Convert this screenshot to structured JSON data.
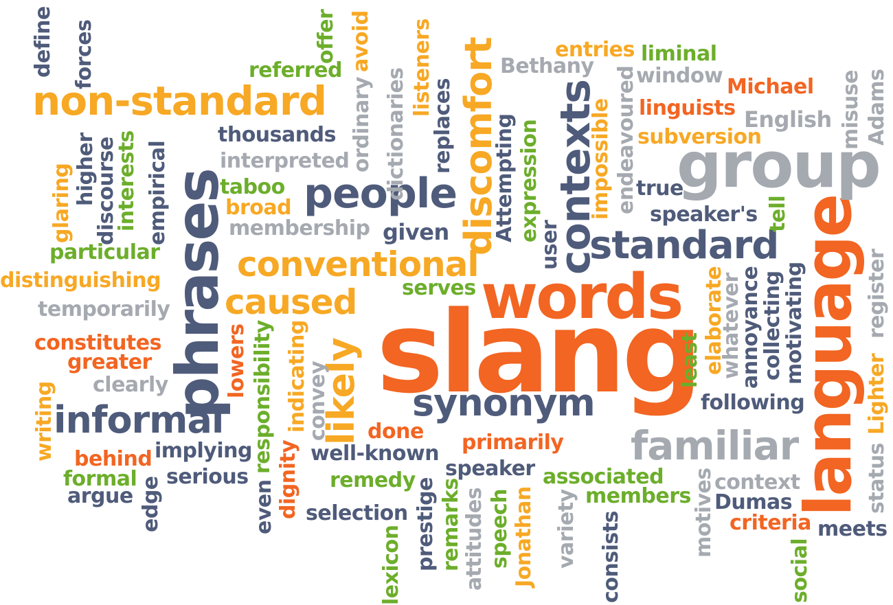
{
  "colors": {
    "orange": "#f26522",
    "amber": "#f7a824",
    "green": "#6cae2b",
    "navy": "#4f5b7a",
    "gray": "#a5a9b0"
  },
  "words": [
    {
      "text": "slang",
      "color": "orange"
    },
    {
      "text": "words",
      "color": "orange"
    },
    {
      "text": "language",
      "color": "orange"
    },
    {
      "text": "group",
      "color": "gray"
    },
    {
      "text": "phrases",
      "color": "navy"
    },
    {
      "text": "non-standard",
      "color": "amber"
    },
    {
      "text": "conventional",
      "color": "amber"
    },
    {
      "text": "caused",
      "color": "amber"
    },
    {
      "text": "people",
      "color": "navy"
    },
    {
      "text": "standard",
      "color": "navy"
    },
    {
      "text": "synonym",
      "color": "navy"
    },
    {
      "text": "informal",
      "color": "navy"
    },
    {
      "text": "familiar",
      "color": "gray"
    },
    {
      "text": "discomfort",
      "color": "amber"
    },
    {
      "text": "contexts",
      "color": "navy"
    },
    {
      "text": "likely",
      "color": "amber"
    },
    {
      "text": "thousands",
      "color": "navy"
    },
    {
      "text": "interpreted",
      "color": "gray"
    },
    {
      "text": "taboo",
      "color": "green"
    },
    {
      "text": "broad",
      "color": "amber"
    },
    {
      "text": "membership",
      "color": "gray"
    },
    {
      "text": "given",
      "color": "navy"
    },
    {
      "text": "referred",
      "color": "green"
    },
    {
      "text": "entries",
      "color": "amber"
    },
    {
      "text": "liminal",
      "color": "green"
    },
    {
      "text": "Bethany",
      "color": "gray"
    },
    {
      "text": "window",
      "color": "gray"
    },
    {
      "text": "Michael",
      "color": "orange"
    },
    {
      "text": "linguists",
      "color": "orange"
    },
    {
      "text": "English",
      "color": "gray"
    },
    {
      "text": "subversion",
      "color": "amber"
    },
    {
      "text": "true",
      "color": "navy"
    },
    {
      "text": "speaker's",
      "color": "navy"
    },
    {
      "text": "particular",
      "color": "green"
    },
    {
      "text": "distinguishing",
      "color": "amber"
    },
    {
      "text": "temporarily",
      "color": "gray"
    },
    {
      "text": "constitutes",
      "color": "orange"
    },
    {
      "text": "greater",
      "color": "orange"
    },
    {
      "text": "clearly",
      "color": "gray"
    },
    {
      "text": "serves",
      "color": "green"
    },
    {
      "text": "done",
      "color": "orange"
    },
    {
      "text": "primarily",
      "color": "orange"
    },
    {
      "text": "well-known",
      "color": "navy"
    },
    {
      "text": "speaker",
      "color": "navy"
    },
    {
      "text": "remedy",
      "color": "green"
    },
    {
      "text": "associated",
      "color": "green"
    },
    {
      "text": "members",
      "color": "green"
    },
    {
      "text": "selection",
      "color": "navy"
    },
    {
      "text": "implying",
      "color": "navy"
    },
    {
      "text": "serious",
      "color": "navy"
    },
    {
      "text": "behind",
      "color": "orange"
    },
    {
      "text": "formal",
      "color": "green"
    },
    {
      "text": "argue",
      "color": "navy"
    },
    {
      "text": "following",
      "color": "navy"
    },
    {
      "text": "context",
      "color": "gray"
    },
    {
      "text": "Dumas",
      "color": "navy"
    },
    {
      "text": "criteria",
      "color": "orange"
    },
    {
      "text": "meets",
      "color": "navy"
    },
    {
      "text": "define",
      "color": "navy"
    },
    {
      "text": "forces",
      "color": "navy"
    },
    {
      "text": "offer",
      "color": "green"
    },
    {
      "text": "avoid",
      "color": "amber"
    },
    {
      "text": "ordinary",
      "color": "gray"
    },
    {
      "text": "dictionaries",
      "color": "gray"
    },
    {
      "text": "listeners",
      "color": "amber"
    },
    {
      "text": "replaces",
      "color": "navy"
    },
    {
      "text": "Attempting",
      "color": "navy"
    },
    {
      "text": "expression",
      "color": "green"
    },
    {
      "text": "impossible",
      "color": "amber"
    },
    {
      "text": "endeavoured",
      "color": "gray"
    },
    {
      "text": "user",
      "color": "navy"
    },
    {
      "text": "misuse",
      "color": "gray"
    },
    {
      "text": "Adams",
      "color": "gray"
    },
    {
      "text": "tell",
      "color": "green"
    },
    {
      "text": "higher",
      "color": "navy"
    },
    {
      "text": "discourse",
      "color": "navy"
    },
    {
      "text": "interests",
      "color": "green"
    },
    {
      "text": "empirical",
      "color": "navy"
    },
    {
      "text": "glaring",
      "color": "amber"
    },
    {
      "text": "register",
      "color": "gray"
    },
    {
      "text": "Lighter",
      "color": "amber"
    },
    {
      "text": "status",
      "color": "gray"
    },
    {
      "text": "elaborate",
      "color": "amber"
    },
    {
      "text": "whatever",
      "color": "gray"
    },
    {
      "text": "annoyance",
      "color": "navy"
    },
    {
      "text": "collecting",
      "color": "navy"
    },
    {
      "text": "motivating",
      "color": "navy"
    },
    {
      "text": "least",
      "color": "green"
    },
    {
      "text": "lowers",
      "color": "orange"
    },
    {
      "text": "dignity",
      "color": "orange"
    },
    {
      "text": "responsibility",
      "color": "green"
    },
    {
      "text": "indicating",
      "color": "amber"
    },
    {
      "text": "convey",
      "color": "gray"
    },
    {
      "text": "even",
      "color": "navy"
    },
    {
      "text": "writing",
      "color": "amber"
    },
    {
      "text": "edge",
      "color": "navy"
    },
    {
      "text": "lexicon",
      "color": "green"
    },
    {
      "text": "prestige",
      "color": "navy"
    },
    {
      "text": "remarks",
      "color": "green"
    },
    {
      "text": "attitudes",
      "color": "gray"
    },
    {
      "text": "speech",
      "color": "green"
    },
    {
      "text": "Jonathan",
      "color": "amber"
    },
    {
      "text": "variety",
      "color": "gray"
    },
    {
      "text": "consists",
      "color": "navy"
    },
    {
      "text": "motives",
      "color": "gray"
    },
    {
      "text": "social",
      "color": "green"
    }
  ]
}
